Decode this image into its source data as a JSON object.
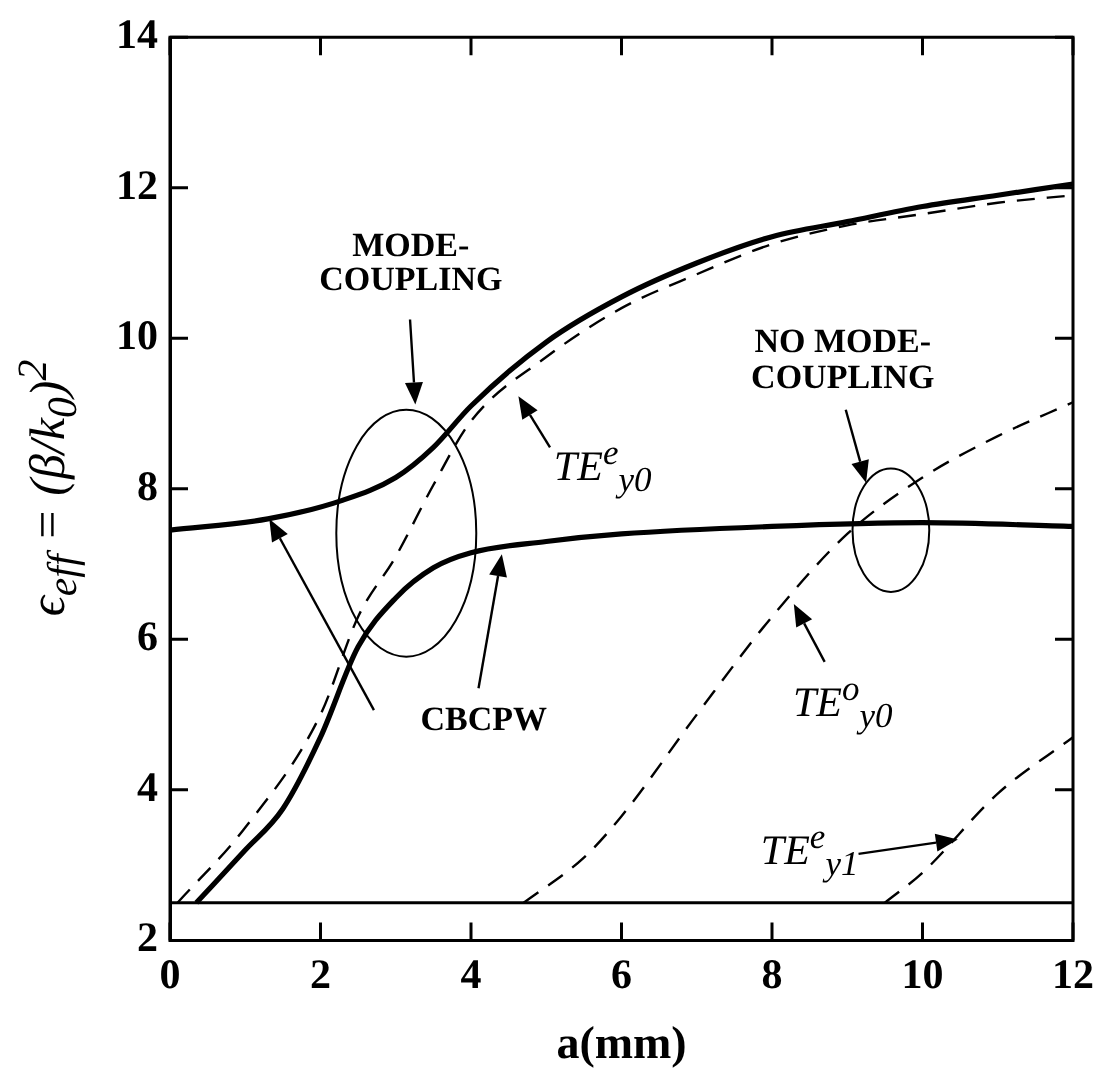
{
  "chart_data": {
    "type": "line",
    "xlabel": "a(mm)",
    "ylabel": "ϵ$_{eff}$ = (β/k$_{0}$)$^{2}$",
    "xlim": [
      0,
      12
    ],
    "xticks": [
      0,
      2,
      4,
      6,
      8,
      10,
      12
    ],
    "ylim": [
      2,
      14
    ],
    "yticks": [
      2,
      4,
      6,
      8,
      10,
      12,
      14
    ],
    "legend": false,
    "marker": "none",
    "series": [
      {
        "type": "line",
        "line_style": "solid",
        "color": "#000000",
        "x": [
          0,
          1.3,
          2.3,
          3,
          3.5,
          4,
          5,
          6,
          7,
          8,
          9,
          10,
          11,
          12
        ],
        "values": [
          7.45,
          7.6,
          7.85,
          8.15,
          8.55,
          9.1,
          9.95,
          10.55,
          11.0,
          11.35,
          11.55,
          11.75,
          11.9,
          12.05
        ]
      },
      {
        "type": "line",
        "line_style": "solid",
        "color": "#000000",
        "x": [
          0.35,
          1,
          1.5,
          2,
          2.5,
          3,
          3.5,
          4,
          5,
          6,
          8,
          10,
          12
        ],
        "values": [
          2.5,
          3.2,
          3.75,
          4.7,
          5.9,
          6.55,
          6.95,
          7.15,
          7.3,
          7.4,
          7.5,
          7.55,
          7.5
        ]
      },
      {
        "type": "line",
        "line_style": "dashed",
        "color": "#000000",
        "x": [
          0.1,
          1,
          2,
          2.5,
          3,
          3.5,
          4,
          5,
          6,
          7,
          8,
          9,
          10,
          11,
          12
        ],
        "values": [
          2.5,
          3.5,
          5.0,
          6.3,
          7.1,
          8.05,
          8.9,
          9.75,
          10.4,
          10.85,
          11.25,
          11.5,
          11.65,
          11.8,
          11.9
        ]
      },
      {
        "type": "line",
        "line_style": "dashed",
        "color": "#000000",
        "x": [
          4.7,
          5.5,
          6,
          7,
          8,
          9,
          10,
          11,
          12
        ],
        "values": [
          2.5,
          3.1,
          3.65,
          5.0,
          6.3,
          7.4,
          8.15,
          8.7,
          9.15
        ]
      },
      {
        "type": "line",
        "line_style": "dashed",
        "color": "#000000",
        "x": [
          9.5,
          10,
          11,
          12
        ],
        "values": [
          2.5,
          2.9,
          3.95,
          4.7
        ]
      }
    ],
    "ref_lines": [
      {
        "axis": "y",
        "value": 2.5,
        "color": "#000000"
      }
    ],
    "annotations": [
      "MODE-\nCOUPLING",
      "NO MODE-\nCOUPLING",
      "CBCPW",
      "TE$^{e}$$_{y0}$",
      "TE$^{o}$$_{y0}$",
      "TE$^{e}$$_{y1}$"
    ]
  }
}
